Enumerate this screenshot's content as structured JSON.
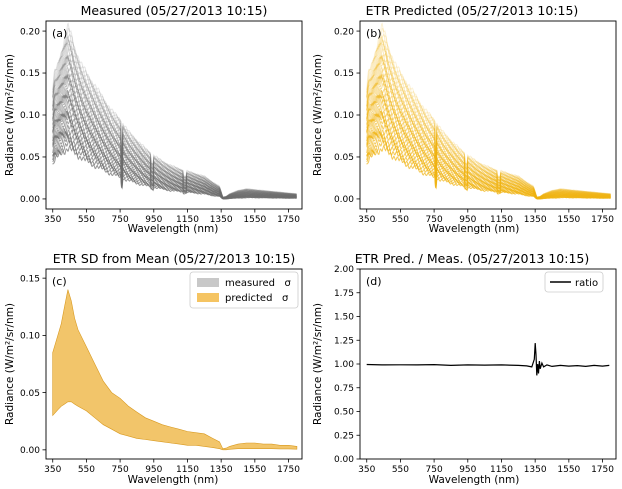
{
  "chart_data": [
    {
      "panel": "(a)",
      "type": "line",
      "title": "Measured (05/27/2013 10:15)",
      "xlabel": "Wavelength (nm)",
      "ylabel": "Radiance (W/m²/sr/nm)",
      "xlim": [
        310,
        1830
      ],
      "ylim": [
        -0.012,
        0.212
      ],
      "xticks": [
        350,
        550,
        750,
        950,
        1150,
        1350,
        1550,
        1750
      ],
      "yticks": [
        0.0,
        0.05,
        0.1,
        0.15,
        0.2
      ],
      "ytick_labels": [
        "0.00",
        "0.05",
        "0.10",
        "0.15",
        "0.20"
      ],
      "color": "#6e6e6e",
      "series_count": 40,
      "envelope": {
        "x": [
          350,
          360,
          380,
          400,
          420,
          440,
          460,
          480,
          500,
          520,
          550,
          600,
          650,
          700,
          750,
          800,
          850,
          900,
          950,
          1000,
          1050,
          1100,
          1150,
          1200,
          1250,
          1300,
          1340,
          1360,
          1380,
          1400,
          1450,
          1500,
          1550,
          1600,
          1650,
          1700,
          1750,
          1800
        ],
        "upper": [
          0.13,
          0.15,
          0.16,
          0.175,
          0.19,
          0.205,
          0.195,
          0.18,
          0.17,
          0.16,
          0.15,
          0.135,
          0.12,
          0.105,
          0.095,
          0.08,
          0.07,
          0.06,
          0.052,
          0.045,
          0.04,
          0.036,
          0.033,
          0.03,
          0.027,
          0.02,
          0.015,
          0.002,
          0.003,
          0.006,
          0.01,
          0.012,
          0.011,
          0.01,
          0.009,
          0.008,
          0.007,
          0.006
        ],
        "lower": [
          0.04,
          0.045,
          0.05,
          0.055,
          0.058,
          0.06,
          0.058,
          0.055,
          0.052,
          0.05,
          0.045,
          0.04,
          0.035,
          0.03,
          0.026,
          0.022,
          0.019,
          0.016,
          0.014,
          0.012,
          0.01,
          0.009,
          0.008,
          0.007,
          0.006,
          0.004,
          0.003,
          0.0,
          0.0,
          0.0005,
          0.001,
          0.0015,
          0.0015,
          0.0013,
          0.0012,
          0.001,
          0.0009,
          0.0008
        ]
      }
    },
    {
      "panel": "(b)",
      "type": "line",
      "title": "ETR Predicted (05/27/2013 10:15)",
      "xlabel": "Wavelength (nm)",
      "ylabel": "Radiance (W/m²/sr/nm)",
      "xlim": [
        310,
        1830
      ],
      "ylim": [
        -0.012,
        0.212
      ],
      "xticks": [
        350,
        550,
        750,
        950,
        1150,
        1350,
        1550,
        1750
      ],
      "yticks": [
        0.0,
        0.05,
        0.1,
        0.15,
        0.2
      ],
      "ytick_labels": [
        "0.00",
        "0.05",
        "0.10",
        "0.15",
        "0.20"
      ],
      "color": "#f0b414",
      "series_count": 40,
      "envelope": {
        "x": [
          350,
          360,
          380,
          400,
          420,
          440,
          460,
          480,
          500,
          520,
          550,
          600,
          650,
          700,
          750,
          800,
          850,
          900,
          950,
          1000,
          1050,
          1100,
          1150,
          1200,
          1250,
          1300,
          1340,
          1360,
          1380,
          1400,
          1450,
          1500,
          1550,
          1600,
          1650,
          1700,
          1750,
          1800
        ],
        "upper": [
          0.13,
          0.15,
          0.16,
          0.175,
          0.19,
          0.205,
          0.195,
          0.18,
          0.17,
          0.16,
          0.15,
          0.135,
          0.12,
          0.105,
          0.095,
          0.08,
          0.07,
          0.06,
          0.052,
          0.045,
          0.04,
          0.036,
          0.033,
          0.03,
          0.027,
          0.02,
          0.015,
          0.002,
          0.003,
          0.006,
          0.01,
          0.012,
          0.011,
          0.01,
          0.009,
          0.008,
          0.007,
          0.006
        ],
        "lower": [
          0.04,
          0.045,
          0.05,
          0.055,
          0.058,
          0.06,
          0.058,
          0.055,
          0.052,
          0.05,
          0.045,
          0.04,
          0.035,
          0.03,
          0.026,
          0.022,
          0.019,
          0.016,
          0.014,
          0.012,
          0.01,
          0.009,
          0.008,
          0.007,
          0.006,
          0.004,
          0.003,
          0.0,
          0.0,
          0.0005,
          0.001,
          0.0015,
          0.0015,
          0.0013,
          0.0012,
          0.001,
          0.0009,
          0.0008
        ]
      }
    },
    {
      "panel": "(c)",
      "type": "area",
      "title": "ETR SD from Mean (05/27/2013 10:15)",
      "xlabel": "Wavelength (nm)",
      "ylabel": "Radiance (W/m²/sr/nm)",
      "xlim": [
        310,
        1830
      ],
      "ylim": [
        -0.008,
        0.158
      ],
      "xticks": [
        350,
        550,
        750,
        950,
        1150,
        1350,
        1550,
        1750
      ],
      "yticks": [
        0.0,
        0.05,
        0.1,
        0.15
      ],
      "ytick_labels": [
        "0.00",
        "0.05",
        "0.10",
        "0.15"
      ],
      "legend_position": "upper right",
      "series": [
        {
          "name": "measured   σ",
          "color": "#c8c8c8",
          "x": [
            350,
            380,
            400,
            420,
            440,
            460,
            480,
            500,
            550,
            600,
            650,
            700,
            750,
            800,
            850,
            900,
            950,
            1000,
            1050,
            1100,
            1150,
            1200,
            1250,
            1300,
            1340,
            1360,
            1380,
            1400,
            1450,
            1500,
            1550,
            1600,
            1650,
            1700,
            1750,
            1800
          ],
          "upper": [
            0.085,
            0.1,
            0.11,
            0.125,
            0.14,
            0.13,
            0.115,
            0.105,
            0.09,
            0.075,
            0.06,
            0.05,
            0.045,
            0.038,
            0.033,
            0.028,
            0.025,
            0.022,
            0.02,
            0.018,
            0.016,
            0.015,
            0.014,
            0.01,
            0.007,
            0.001,
            0.0015,
            0.003,
            0.005,
            0.006,
            0.006,
            0.005,
            0.005,
            0.004,
            0.004,
            0.003
          ],
          "lower": [
            0.03,
            0.035,
            0.038,
            0.04,
            0.042,
            0.042,
            0.04,
            0.038,
            0.034,
            0.028,
            0.022,
            0.018,
            0.014,
            0.012,
            0.01,
            0.009,
            0.008,
            0.007,
            0.006,
            0.005,
            0.004,
            0.004,
            0.003,
            0.002,
            0.001,
            0.0,
            0.0,
            0.0005,
            0.001,
            0.001,
            0.001,
            0.001,
            0.001,
            0.0008,
            0.0008,
            0.0006
          ]
        },
        {
          "name": "predicted   σ",
          "color": "#f5c462",
          "x": [
            350,
            380,
            400,
            420,
            440,
            460,
            480,
            500,
            550,
            600,
            650,
            700,
            750,
            800,
            850,
            900,
            950,
            1000,
            1050,
            1100,
            1150,
            1200,
            1250,
            1300,
            1340,
            1360,
            1380,
            1400,
            1450,
            1500,
            1550,
            1600,
            1650,
            1700,
            1750,
            1800
          ],
          "upper": [
            0.085,
            0.1,
            0.11,
            0.125,
            0.14,
            0.13,
            0.115,
            0.105,
            0.09,
            0.075,
            0.06,
            0.05,
            0.045,
            0.038,
            0.033,
            0.028,
            0.025,
            0.022,
            0.02,
            0.018,
            0.016,
            0.015,
            0.014,
            0.01,
            0.007,
            0.001,
            0.0015,
            0.003,
            0.005,
            0.006,
            0.006,
            0.005,
            0.005,
            0.004,
            0.004,
            0.003
          ],
          "lower": [
            0.03,
            0.035,
            0.038,
            0.04,
            0.042,
            0.042,
            0.04,
            0.038,
            0.034,
            0.028,
            0.022,
            0.018,
            0.014,
            0.012,
            0.01,
            0.009,
            0.008,
            0.007,
            0.006,
            0.005,
            0.004,
            0.004,
            0.003,
            0.002,
            0.001,
            0.0,
            0.0,
            0.0005,
            0.001,
            0.001,
            0.001,
            0.001,
            0.001,
            0.0008,
            0.0008,
            0.0006
          ]
        }
      ]
    },
    {
      "panel": "(d)",
      "type": "line",
      "title": "ETR Pred. / Meas. (05/27/2013 10:15)",
      "xlabel": "Wavelength (nm)",
      "ylabel": "Radiance (W/m²/sr/nm)",
      "xlim": [
        310,
        1830
      ],
      "ylim": [
        0.0,
        2.0
      ],
      "xticks": [
        350,
        550,
        750,
        950,
        1150,
        1350,
        1550,
        1750
      ],
      "yticks": [
        0.0,
        0.25,
        0.5,
        0.75,
        1.0,
        1.25,
        1.5,
        1.75,
        2.0
      ],
      "ytick_labels": [
        "0.00",
        "0.25",
        "0.50",
        "0.75",
        "1.00",
        "1.25",
        "1.50",
        "1.75",
        "2.00"
      ],
      "legend_position": "upper right",
      "series": [
        {
          "name": "ratio",
          "color": "#000000",
          "x": [
            350,
            450,
            550,
            650,
            750,
            850,
            950,
            1050,
            1150,
            1250,
            1300,
            1330,
            1345,
            1350,
            1355,
            1360,
            1365,
            1370,
            1375,
            1380,
            1390,
            1400,
            1420,
            1450,
            1500,
            1550,
            1600,
            1650,
            1700,
            1750,
            1790
          ],
          "values": [
            0.995,
            0.99,
            0.992,
            0.99,
            0.994,
            0.985,
            0.99,
            0.988,
            0.99,
            0.985,
            0.98,
            0.97,
            1.05,
            1.22,
            1.1,
            0.88,
            1.0,
            0.9,
            1.03,
            0.95,
            1.01,
            0.97,
            0.99,
            0.975,
            0.985,
            0.978,
            0.983,
            0.975,
            0.985,
            0.978,
            0.985
          ]
        }
      ]
    }
  ]
}
